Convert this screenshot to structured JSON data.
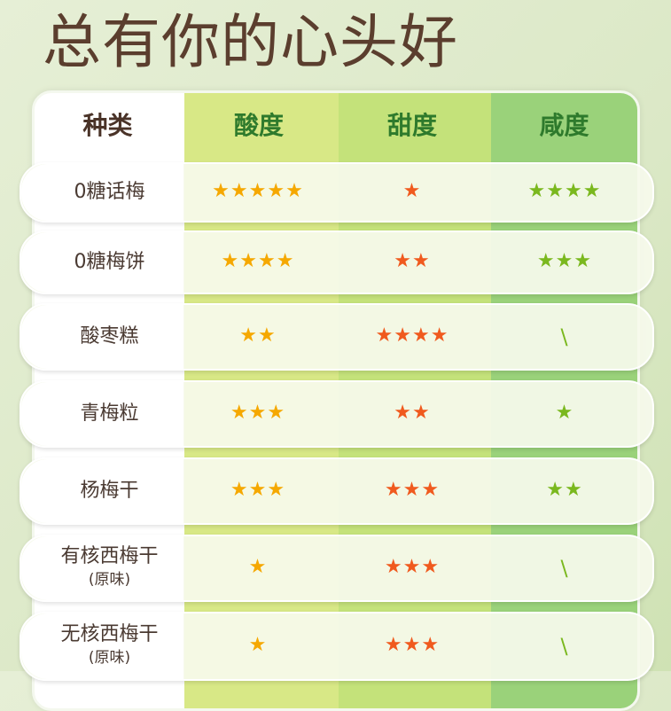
{
  "title": "总有你的心头好",
  "colors": {
    "acid": "#f5a800",
    "sweet": "#f05a1e",
    "salty": "#7ab81e",
    "title": "#5b3e2e"
  },
  "headers": [
    "种类",
    "酸度",
    "甜度",
    "咸度"
  ],
  "none_mark": "\\",
  "rows": [
    {
      "name": "0糖话梅",
      "sub": "",
      "acid": 5,
      "sweet": 1,
      "salty": 4
    },
    {
      "name": "0糖梅饼",
      "sub": "",
      "acid": 4,
      "sweet": 2,
      "salty": 3
    },
    {
      "name": "酸枣糕",
      "sub": "",
      "acid": 2,
      "sweet": 4,
      "salty": 0
    },
    {
      "name": "青梅粒",
      "sub": "",
      "acid": 3,
      "sweet": 2,
      "salty": 1
    },
    {
      "name": "杨梅干",
      "sub": "",
      "acid": 3,
      "sweet": 3,
      "salty": 2
    },
    {
      "name": "有核西梅干",
      "sub": "(原味)",
      "acid": 1,
      "sweet": 3,
      "salty": 0
    },
    {
      "name": "无核西梅干",
      "sub": "(原味)",
      "acid": 1,
      "sweet": 3,
      "salty": 0
    }
  ]
}
